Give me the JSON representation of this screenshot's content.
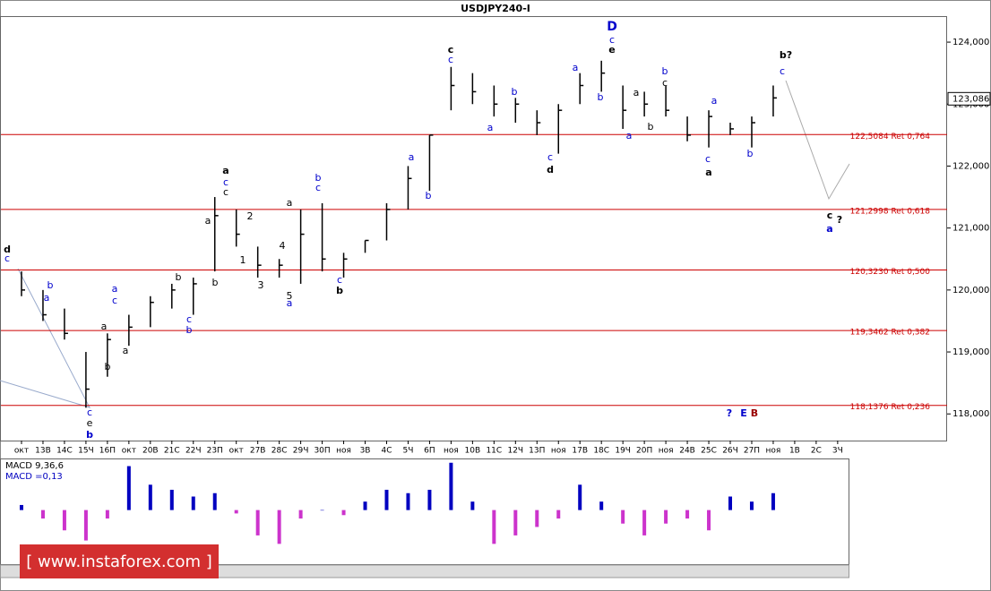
{
  "chart_data": {
    "type": "ohlc",
    "title": "USDJPY240-I",
    "categories": [
      "окт",
      "13В",
      "14С",
      "15Ч",
      "16П",
      "окт",
      "20В",
      "21С",
      "22Ч",
      "23П",
      "окт",
      "27В",
      "28С",
      "29Ч",
      "30П",
      "ноя",
      "3В",
      "4С",
      "5Ч",
      "6П",
      "ноя",
      "10В",
      "11С",
      "12Ч",
      "13П",
      "ноя",
      "17В",
      "18С",
      "19Ч",
      "20П",
      "ноя",
      "24В",
      "25С",
      "26Ч",
      "27П",
      "ноя",
      "1В",
      "2С",
      "3Ч"
    ],
    "high": [
      120.3,
      120.0,
      119.7,
      119.0,
      119.3,
      119.6,
      119.9,
      120.1,
      120.2,
      121.5,
      121.3,
      120.7,
      120.5,
      121.3,
      121.4,
      120.6,
      120.8,
      121.4,
      122.0,
      122.5,
      123.6,
      123.5,
      123.3,
      123.1,
      122.9,
      123.0,
      123.5,
      123.7,
      123.3,
      123.2,
      123.3,
      122.8,
      122.9,
      122.7,
      122.8,
      123.3,
      null,
      null,
      null
    ],
    "low": [
      119.9,
      119.5,
      119.2,
      118.1,
      118.6,
      119.1,
      119.4,
      119.7,
      119.6,
      120.3,
      120.7,
      120.2,
      120.2,
      120.1,
      120.3,
      120.2,
      120.6,
      120.8,
      121.3,
      121.6,
      122.9,
      123.0,
      122.8,
      122.7,
      122.5,
      122.2,
      123.0,
      123.2,
      122.6,
      122.8,
      122.8,
      122.4,
      122.3,
      122.5,
      122.3,
      122.8,
      null,
      null,
      null
    ],
    "close": [
      120.0,
      119.6,
      119.3,
      118.4,
      119.2,
      119.4,
      119.8,
      120.0,
      120.1,
      121.2,
      120.9,
      120.4,
      120.4,
      120.9,
      120.5,
      120.5,
      120.8,
      121.3,
      121.8,
      122.5,
      123.3,
      123.2,
      123.0,
      123.0,
      122.7,
      122.9,
      123.3,
      123.5,
      122.9,
      123.0,
      122.9,
      122.5,
      122.8,
      122.6,
      122.7,
      123.1,
      null,
      null,
      null
    ],
    "color": "#000000",
    "ylim": [
      117.57,
      124.42
    ],
    "yticks": [
      {
        "value": 118,
        "label": "118,000"
      },
      {
        "value": 119,
        "label": "119,000"
      },
      {
        "value": 120,
        "label": "120,000"
      },
      {
        "value": 121,
        "label": "121,000"
      },
      {
        "value": 122,
        "label": "122,000"
      },
      {
        "value": 123,
        "label": "123,000"
      },
      {
        "value": 124,
        "label": "124,000"
      }
    ],
    "last": {
      "value": 123.086,
      "label": "123,086"
    },
    "levels": [
      {
        "value": 122.5084,
        "label": "122,5084 Ret 0,764"
      },
      {
        "value": 121.2998,
        "label": "121,2998 Ret 0,618"
      },
      {
        "value": 120.323,
        "label": "120,3230 Ret 0,500"
      },
      {
        "value": 119.3462,
        "label": "119,3462 Ret 0,382"
      },
      {
        "value": 118.1376,
        "label": "118,1376 Ret 0,236"
      }
    ],
    "level_color": "#cc0000",
    "annotations": [
      {
        "text": "d",
        "color": "#000000"
      },
      {
        "text": "c",
        "color": "#0000cc"
      },
      {
        "text": "b",
        "color": "#0000cc"
      },
      {
        "text": "a",
        "color": "#0000cc"
      },
      {
        "text": "c",
        "color": "#0000cc"
      },
      {
        "text": "e",
        "color": "#000000"
      },
      {
        "text": "b",
        "color": "#0000cc"
      },
      {
        "text": "a",
        "color": "#000000"
      },
      {
        "text": "b",
        "color": "#000000"
      },
      {
        "text": "a",
        "color": "#0000cc"
      },
      {
        "text": "c",
        "color": "#0000cc"
      },
      {
        "text": "a",
        "color": "#000000"
      },
      {
        "text": "c",
        "color": "#0000cc"
      },
      {
        "text": "b",
        "color": "#0000cc"
      },
      {
        "text": "b",
        "color": "#000000"
      },
      {
        "text": "a",
        "color": "#000000"
      },
      {
        "text": "b",
        "color": "#000000"
      },
      {
        "text": "a",
        "color": "#000000"
      },
      {
        "text": "c",
        "color": "#0000cc"
      },
      {
        "text": "c",
        "color": "#000000"
      },
      {
        "text": "2",
        "color": "#000000"
      },
      {
        "text": "1",
        "color": "#000000"
      },
      {
        "text": "3",
        "color": "#000000"
      },
      {
        "text": "4",
        "color": "#000000"
      },
      {
        "text": "5",
        "color": "#000000"
      },
      {
        "text": "a",
        "color": "#0000cc"
      },
      {
        "text": "a",
        "color": "#000000"
      },
      {
        "text": "b",
        "color": "#0000cc"
      },
      {
        "text": "c",
        "color": "#0000cc"
      },
      {
        "text": "c",
        "color": "#0000cc"
      },
      {
        "text": "b",
        "color": "#000000"
      },
      {
        "text": "a",
        "color": "#0000cc"
      },
      {
        "text": "b",
        "color": "#0000cc"
      },
      {
        "text": "c",
        "color": "#000000"
      },
      {
        "text": "c",
        "color": "#0000cc"
      },
      {
        "text": "b",
        "color": "#0000cc"
      },
      {
        "text": "a",
        "color": "#0000cc"
      },
      {
        "text": "a",
        "color": "#0000cc"
      },
      {
        "text": "b",
        "color": "#0000cc"
      },
      {
        "text": "D",
        "color": "#0000cc"
      },
      {
        "text": "c",
        "color": "#0000cc"
      },
      {
        "text": "e",
        "color": "#000000"
      },
      {
        "text": "c",
        "color": "#0000cc"
      },
      {
        "text": "d",
        "color": "#000000"
      },
      {
        "text": "a",
        "color": "#000000"
      },
      {
        "text": "a",
        "color": "#0000cc"
      },
      {
        "text": "b",
        "color": "#000000"
      },
      {
        "text": "b",
        "color": "#0000cc"
      },
      {
        "text": "c",
        "color": "#000000"
      },
      {
        "text": "a",
        "color": "#0000cc"
      },
      {
        "text": "c",
        "color": "#0000cc"
      },
      {
        "text": "a",
        "color": "#000000"
      },
      {
        "text": "b",
        "color": "#0000cc"
      },
      {
        "text": "b?",
        "color": "#000000"
      },
      {
        "text": "c",
        "color": "#0000cc"
      },
      {
        "text": "c",
        "color": "#000000"
      },
      {
        "text": "?",
        "color": "#000000"
      },
      {
        "text": "a",
        "color": "#0000cc"
      },
      {
        "text": "?",
        "color": "#0000cc"
      },
      {
        "text": "E",
        "color": "#0000cc"
      },
      {
        "text": "B",
        "color": "#990000"
      }
    ],
    "indicator": {
      "type": "bar",
      "label": "MACD 9,36,6",
      "value_label": "MACD =0,13",
      "values": [
        0.03,
        -0.05,
        -0.12,
        -0.18,
        -0.05,
        0.26,
        0.15,
        0.12,
        0.08,
        0.1,
        -0.02,
        -0.15,
        -0.2,
        -0.05,
        0.0,
        -0.03,
        0.05,
        0.12,
        0.1,
        0.12,
        0.28,
        0.05,
        -0.2,
        -0.15,
        -0.1,
        -0.05,
        0.15,
        0.05,
        -0.08,
        -0.15,
        -0.08,
        -0.05,
        -0.12,
        0.08,
        0.05,
        0.1,
        null,
        null,
        null
      ],
      "ylim": [
        -0.32,
        0.3
      ],
      "positive_color": "#0000c0",
      "negative_color": "#cc33cc"
    },
    "watermark": "[ www.instaforex.com ]"
  }
}
